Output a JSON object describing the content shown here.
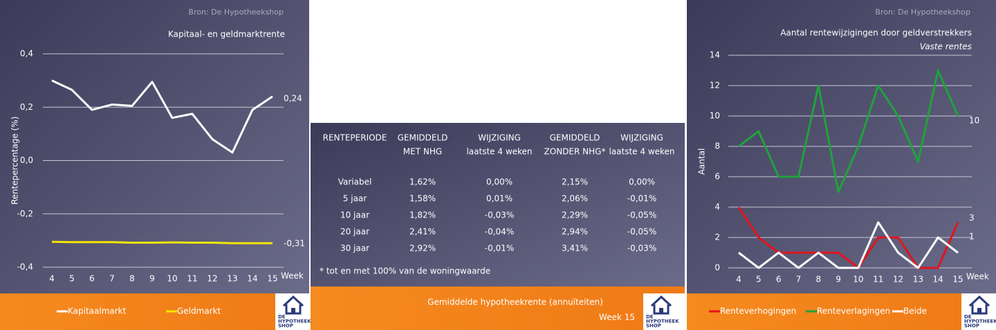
{
  "chart_data": [
    {
      "type": "line",
      "source": "Bron: De Hypotheekshop",
      "title": "Kapitaal- en geldmarktrente",
      "ylabel": "Rentepercentage (%)",
      "xlabel": "Week",
      "x": [
        4,
        5,
        6,
        7,
        8,
        9,
        10,
        11,
        12,
        13,
        14,
        15
      ],
      "xlim": [
        4,
        15
      ],
      "ylim": [
        -0.4,
        0.4
      ],
      "yticks": [
        {
          "value": -0.4,
          "label": "-0,4"
        },
        {
          "value": -0.2,
          "label": "-0,2"
        },
        {
          "value": 0,
          "label": "0,0"
        },
        {
          "value": 0.2,
          "label": "0,2"
        },
        {
          "value": 0.4,
          "label": "0,4"
        }
      ],
      "grid": true,
      "legend": "bottom",
      "series": [
        {
          "name": "Kapitaalmarkt",
          "color": "#ffffff",
          "values": [
            0.3,
            0.265,
            0.19,
            0.21,
            0.205,
            0.295,
            0.16,
            0.175,
            0.08,
            0.03,
            0.19,
            0.24
          ],
          "value_labels": [
            null,
            null,
            null,
            null,
            null,
            null,
            null,
            null,
            null,
            null,
            null,
            "0,24"
          ]
        },
        {
          "name": "Geldmarkt",
          "color": "#f2e600",
          "values": [
            -0.305,
            -0.306,
            -0.306,
            -0.306,
            -0.308,
            -0.308,
            -0.307,
            -0.308,
            -0.308,
            -0.31,
            -0.31,
            -0.31
          ],
          "value_labels": [
            null,
            null,
            null,
            null,
            null,
            null,
            null,
            null,
            null,
            null,
            null,
            "-0,31"
          ]
        }
      ]
    },
    {
      "type": "line",
      "source": "Bron: De Hypotheekshop",
      "title": "Aantal rentewijzigingen door geldverstrekkers",
      "subtitle": "Vaste rentes",
      "ylabel": "Aantal",
      "xlabel": "Week",
      "x": [
        4,
        5,
        6,
        7,
        8,
        9,
        10,
        11,
        12,
        13,
        14,
        15
      ],
      "xlim": [
        4,
        15
      ],
      "ylim": [
        0,
        14
      ],
      "yticks": [
        0,
        2,
        4,
        6,
        8,
        10,
        12,
        14
      ],
      "grid": true,
      "legend": "bottom",
      "series": [
        {
          "name": "Renteverhogingen",
          "color": "#e3141b",
          "values": [
            4,
            2,
            1,
            1,
            1,
            1,
            0,
            2,
            2,
            0,
            0,
            3
          ],
          "value_labels": [
            null,
            null,
            null,
            null,
            null,
            null,
            null,
            null,
            null,
            null,
            null,
            "3"
          ]
        },
        {
          "name": "Renteverlagingen",
          "color": "#1fa33a",
          "values": [
            8,
            9,
            6,
            6,
            12,
            5,
            8,
            12,
            10,
            7,
            13,
            10
          ],
          "value_labels": [
            null,
            null,
            null,
            null,
            null,
            null,
            null,
            null,
            null,
            null,
            null,
            "10"
          ]
        },
        {
          "name": "Beide",
          "color": "#ffffff",
          "values": [
            1,
            0,
            1,
            0,
            1,
            0,
            0,
            3,
            1,
            0,
            2,
            1
          ],
          "value_labels": [
            null,
            null,
            null,
            null,
            null,
            null,
            null,
            null,
            null,
            null,
            null,
            "1"
          ]
        }
      ]
    }
  ],
  "table": {
    "headers": [
      [
        "RENTEPERIODE"
      ],
      [
        "GEMIDDELD",
        "MET NHG"
      ],
      [
        "WIJZIGING",
        "laatste 4 weken"
      ],
      [
        "GEMIDDELD",
        "ZONDER NHG*"
      ],
      [
        "WIJZIGING",
        "laatste 4 weken"
      ]
    ],
    "rows": [
      [
        "Variabel",
        "1,62%",
        "0,00%",
        "2,15%",
        "0,00%"
      ],
      [
        "5 jaar",
        "1,58%",
        "0,01%",
        "2,06%",
        "-0,01%"
      ],
      [
        "10 jaar",
        "1,82%",
        "-0,03%",
        "2,29%",
        "-0,05%"
      ],
      [
        "20 jaar",
        "2,41%",
        "-0,04%",
        "2,94%",
        "-0,05%"
      ],
      [
        "30 jaar",
        "2,92%",
        "-0,01%",
        "3,41%",
        "-0,03%"
      ]
    ],
    "footnote": "* tot en met 100% van de woningwaarde",
    "title": "Gemiddelde hypotheekrente (annuïteiten)",
    "week": "Week 15"
  },
  "logo": [
    "DE",
    "HYPOTHEEK",
    "SHOP"
  ]
}
